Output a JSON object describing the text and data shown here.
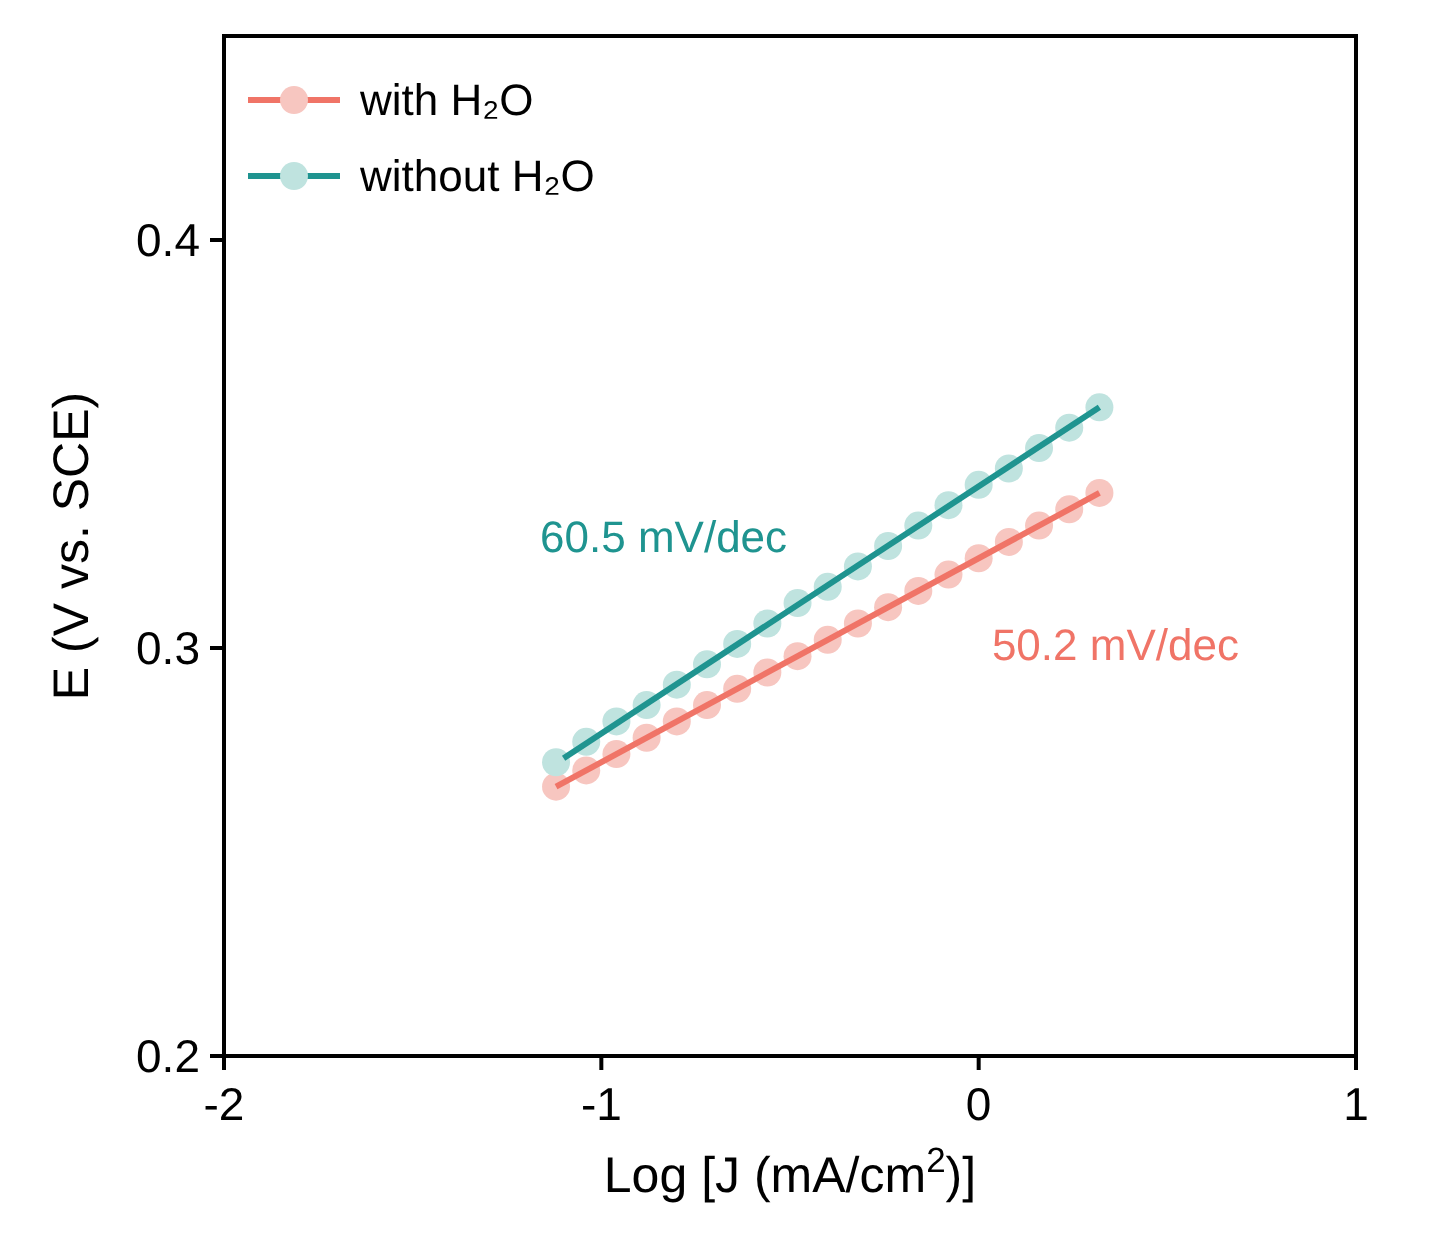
{
  "chart_data": {
    "type": "scatter",
    "xlabel": "Log [J (mA/cm$^{2}$)]",
    "ylabel": "E (V vs. SCE)",
    "xlim": [
      -2,
      1
    ],
    "ylim": [
      0.2,
      0.45
    ],
    "xticks": [
      -2,
      -1,
      0,
      1
    ],
    "yticks": [
      0.2,
      0.3,
      0.4
    ],
    "legend": "top left",
    "grid": false,
    "series": [
      {
        "name": "with H₂O",
        "marker": "circle",
        "color": "#f7c6c0",
        "x": [
          -1.12,
          -1.04,
          -0.96,
          -0.88,
          -0.8,
          -0.72,
          -0.64,
          -0.56,
          -0.48,
          -0.4,
          -0.32,
          -0.24,
          -0.16,
          -0.08,
          0,
          0.08,
          0.16,
          0.24,
          0.32
        ],
        "values": [
          0.266,
          0.27,
          0.274,
          0.278,
          0.282,
          0.286,
          0.29,
          0.294,
          0.298,
          0.302,
          0.306,
          0.31,
          0.314,
          0.318,
          0.322,
          0.326,
          0.33,
          0.334,
          0.338
        ]
      },
      {
        "type": "line",
        "color": "#f07467",
        "x": [
          -1.12,
          0.32
        ],
        "values": [
          0.266,
          0.338
        ]
      },
      {
        "name": "without H₂O",
        "marker": "circle",
        "color": "#bfe3df",
        "x": [
          -1.12,
          -1.04,
          -0.96,
          -0.88,
          -0.8,
          -0.72,
          -0.64,
          -0.56,
          -0.48,
          -0.4,
          -0.32,
          -0.24,
          -0.16,
          -0.08,
          0,
          0.08,
          0.16,
          0.24,
          0.32
        ],
        "values": [
          0.272,
          0.277,
          0.282,
          0.286,
          0.291,
          0.296,
          0.301,
          0.306,
          0.311,
          0.315,
          0.32,
          0.325,
          0.33,
          0.335,
          0.34,
          0.344,
          0.349,
          0.354,
          0.359
        ]
      },
      {
        "type": "line",
        "color": "#1f9490",
        "x": [
          -1.1,
          0.32
        ],
        "values": [
          0.273,
          0.359
        ]
      }
    ],
    "annotations": [
      "50.2 mV/dec",
      "60.5 mV/dec"
    ]
  }
}
